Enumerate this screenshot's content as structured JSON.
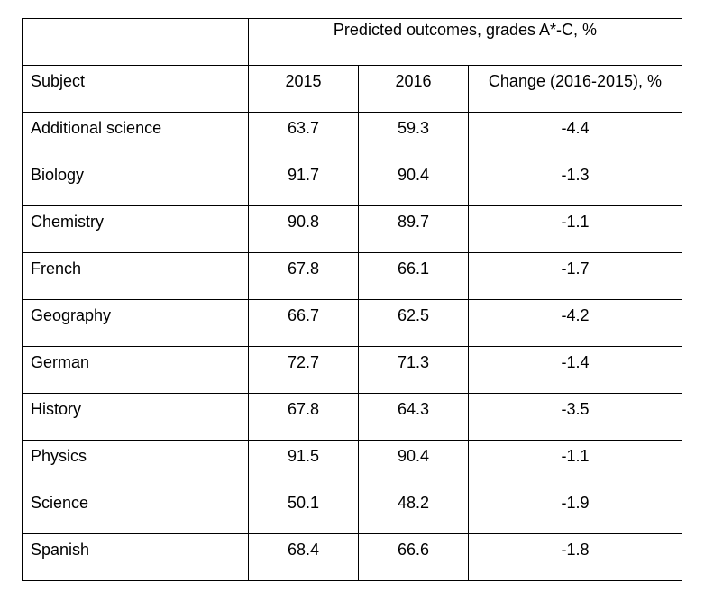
{
  "table": {
    "group_header": "Predicted outcomes, grades A*-C, %",
    "columns": [
      "Subject",
      "2015",
      "2016",
      "Change (2016-2015), %"
    ],
    "rows": [
      {
        "subject": "Additional science",
        "y2015": "63.7",
        "y2016": "59.3",
        "change": "-4.4"
      },
      {
        "subject": "Biology",
        "y2015": "91.7",
        "y2016": "90.4",
        "change": "-1.3"
      },
      {
        "subject": "Chemistry",
        "y2015": "90.8",
        "y2016": "89.7",
        "change": "-1.1"
      },
      {
        "subject": "French",
        "y2015": "67.8",
        "y2016": "66.1",
        "change": "-1.7"
      },
      {
        "subject": "Geography",
        "y2015": "66.7",
        "y2016": "62.5",
        "change": "-4.2"
      },
      {
        "subject": "German",
        "y2015": "72.7",
        "y2016": "71.3",
        "change": "-1.4"
      },
      {
        "subject": "History",
        "y2015": "67.8",
        "y2016": "64.3",
        "change": "-3.5"
      },
      {
        "subject": "Physics",
        "y2015": "91.5",
        "y2016": "90.4",
        "change": "-1.1"
      },
      {
        "subject": "Science",
        "y2015": "50.1",
        "y2016": "48.2",
        "change": "-1.9"
      },
      {
        "subject": "Spanish",
        "y2015": "68.4",
        "y2016": "66.6",
        "change": "-1.8"
      }
    ]
  }
}
